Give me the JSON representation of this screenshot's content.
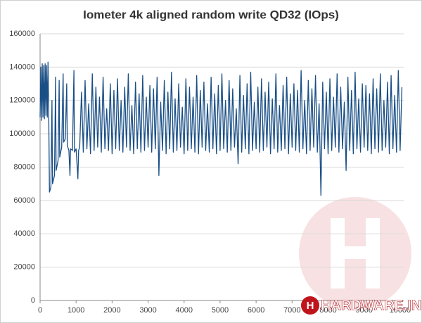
{
  "chart_data": {
    "type": "line",
    "title": "Iometer 4k aligned random write QD32 (IOps)",
    "watermark": "HARDWARE.INFO",
    "color": "#1a4f86",
    "grid": true,
    "xlim": [
      0,
      10100
    ],
    "ylim": [
      0,
      160000
    ],
    "xticks": [
      0,
      1000,
      2000,
      3000,
      4000,
      5000,
      6000,
      7000,
      8000,
      9000,
      10000
    ],
    "yticks": [
      0,
      20000,
      40000,
      60000,
      80000,
      100000,
      120000,
      140000,
      160000
    ],
    "x": [
      0,
      20,
      40,
      60,
      80,
      100,
      120,
      140,
      160,
      180,
      200,
      220,
      240,
      260,
      300,
      330,
      345,
      400,
      430,
      445,
      500,
      530,
      545,
      600,
      640,
      655,
      700,
      740,
      755,
      800,
      830,
      845,
      900,
      940,
      955,
      1000,
      1050,
      1070,
      1100,
      1150,
      1200,
      1250,
      1300,
      1350,
      1400,
      1450,
      1500,
      1550,
      1600,
      1650,
      1700,
      1750,
      1800,
      1850,
      1900,
      1950,
      2000,
      2050,
      2100,
      2150,
      2200,
      2250,
      2300,
      2350,
      2400,
      2450,
      2500,
      2550,
      2600,
      2650,
      2700,
      2750,
      2800,
      2850,
      2900,
      2950,
      3000,
      3050,
      3100,
      3150,
      3200,
      3250,
      3300,
      3350,
      3400,
      3450,
      3500,
      3550,
      3600,
      3650,
      3700,
      3750,
      3800,
      3850,
      3900,
      3950,
      4000,
      4050,
      4100,
      4150,
      4200,
      4250,
      4300,
      4350,
      4400,
      4450,
      4500,
      4550,
      4600,
      4650,
      4700,
      4750,
      4800,
      4850,
      4900,
      4950,
      5000,
      5050,
      5100,
      5150,
      5200,
      5250,
      5300,
      5350,
      5400,
      5450,
      5500,
      5550,
      5600,
      5650,
      5700,
      5750,
      5800,
      5850,
      5900,
      5950,
      6000,
      6050,
      6100,
      6150,
      6200,
      6250,
      6300,
      6350,
      6400,
      6450,
      6500,
      6550,
      6600,
      6650,
      6700,
      6750,
      6800,
      6850,
      6900,
      6950,
      7000,
      7050,
      7100,
      7150,
      7200,
      7250,
      7300,
      7350,
      7400,
      7450,
      7500,
      7550,
      7600,
      7650,
      7700,
      7750,
      7800,
      7850,
      7900,
      7950,
      8000,
      8050,
      8100,
      8150,
      8200,
      8250,
      8300,
      8350,
      8400,
      8450,
      8500,
      8550,
      8600,
      8650,
      8700,
      8750,
      8800,
      8850,
      8900,
      8950,
      9000,
      9050,
      9100,
      9150,
      9200,
      9250,
      9300,
      9350,
      9400,
      9450,
      9500,
      9550,
      9600,
      9650,
      9700,
      9750,
      9800,
      9850,
      9900,
      9950,
      10000,
      10050
    ],
    "values": [
      110000,
      140000,
      108000,
      142000,
      110000,
      141000,
      109000,
      142000,
      111000,
      141000,
      110000,
      143000,
      112000,
      65000,
      68000,
      120000,
      70000,
      75000,
      134000,
      78000,
      84000,
      132000,
      86000,
      92000,
      136000,
      95000,
      97000,
      130000,
      93000,
      90000,
      75000,
      91000,
      90000,
      138000,
      89000,
      91000,
      73000,
      90000,
      92000,
      125000,
      89000,
      132000,
      91000,
      118000,
      88000,
      136000,
      90000,
      128000,
      92000,
      122000,
      89000,
      134000,
      91000,
      115000,
      90000,
      130000,
      88000,
      126000,
      91000,
      133000,
      90000,
      120000,
      89000,
      128000,
      92000,
      136000,
      90000,
      117000,
      88000,
      131000,
      91000,
      124000,
      89000,
      135000,
      90000,
      122000,
      92000,
      129000,
      89000,
      127000,
      91000,
      134000,
      75000,
      119000,
      90000,
      132000,
      88000,
      125000,
      91000,
      137000,
      89000,
      121000,
      90000,
      130000,
      92000,
      116000,
      88000,
      133000,
      90000,
      128000,
      91000,
      122000,
      89000,
      135000,
      88000,
      126000,
      92000,
      131000,
      90000,
      118000,
      89000,
      134000,
      91000,
      124000,
      88000,
      129000,
      90000,
      136000,
      91000,
      120000,
      89000,
      132000,
      90000,
      127000,
      92000,
      115000,
      82000,
      135000,
      89000,
      123000,
      91000,
      130000,
      88000,
      137000,
      90000,
      119000,
      91000,
      128000,
      89000,
      133000,
      90000,
      125000,
      92000,
      131000,
      88000,
      121000,
      91000,
      136000,
      89000,
      117000,
      90000,
      129000,
      91000,
      134000,
      88000,
      124000,
      92000,
      130000,
      90000,
      126000,
      89000,
      138000,
      91000,
      120000,
      88000,
      132000,
      90000,
      127000,
      92000,
      135000,
      89000,
      118000,
      63000,
      131000,
      91000,
      125000,
      88000,
      133000,
      90000,
      122000,
      92000,
      136000,
      89000,
      128000,
      91000,
      119000,
      78000,
      134000,
      90000,
      126000,
      88000,
      137000,
      91000,
      121000,
      89000,
      130000,
      92000,
      129000,
      90000,
      124000,
      88000,
      133000,
      91000,
      127000,
      89000,
      136000,
      90000,
      120000,
      92000,
      131000,
      88000,
      135000,
      91000,
      123000,
      89000,
      138000,
      90000,
      128000
    ]
  }
}
